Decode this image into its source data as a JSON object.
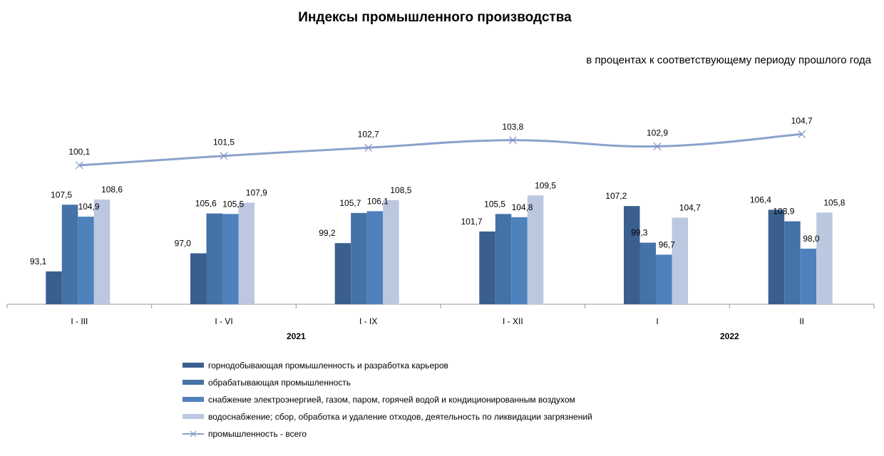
{
  "chart_data": {
    "type": "bar",
    "title": "Индексы промышленного производства",
    "subtitle": "в процентах к соответствующему  периоду прошлого года",
    "categories": [
      "I - III",
      "I - VI",
      "I - IX",
      "I - XII",
      "I",
      "II"
    ],
    "years": [
      {
        "label": "2021",
        "from": 0,
        "to": 3
      },
      {
        "label": "2022",
        "from": 4,
        "to": 5
      }
    ],
    "series": [
      {
        "name": "горнодобывающая промышленность и разработка карьеров",
        "type": "bar",
        "color": "#3a5f8f",
        "values": [
          93.1,
          97.0,
          99.2,
          101.7,
          107.2,
          106.4
        ],
        "labels": [
          "93,1",
          "97,0",
          "99,2",
          "101,7",
          "107,2",
          "106,4"
        ]
      },
      {
        "name": "обрабатывающая промышленность",
        "type": "bar",
        "color": "#4572a7",
        "values": [
          107.5,
          105.6,
          105.7,
          105.5,
          99.3,
          103.9
        ],
        "labels": [
          "107,5",
          "105,6",
          "105,7",
          "105,5",
          "99,3",
          "103,9"
        ]
      },
      {
        "name": "снабжение электроэнергией, газом, паром, горячей водой и  кондиционированным воздухом",
        "type": "bar",
        "color": "#4f81bd",
        "values": [
          104.9,
          105.5,
          106.1,
          104.8,
          96.7,
          98.0
        ],
        "labels": [
          "104,9",
          "105,5",
          "106,1",
          "104,8",
          "96,7",
          "98,0"
        ]
      },
      {
        "name": "водоснабжение; сбор, обработка и удаление отходов, деятельность по ликвидации загрязнений",
        "type": "bar",
        "color": "#bcc8e0",
        "values": [
          108.6,
          107.9,
          108.5,
          109.5,
          104.7,
          105.8
        ],
        "labels": [
          "108,6",
          "107,9",
          "108,5",
          "109,5",
          "104,7",
          "105,8"
        ]
      },
      {
        "name": "промышленность - всего",
        "type": "line",
        "color": "#8aa2cc",
        "values": [
          100.1,
          101.5,
          102.7,
          103.8,
          102.9,
          104.7
        ],
        "labels": [
          "100,1",
          "101,5",
          "102,7",
          "103,8",
          "102,9",
          "104,7"
        ]
      }
    ],
    "legend_position": "bottom",
    "grid": false
  }
}
